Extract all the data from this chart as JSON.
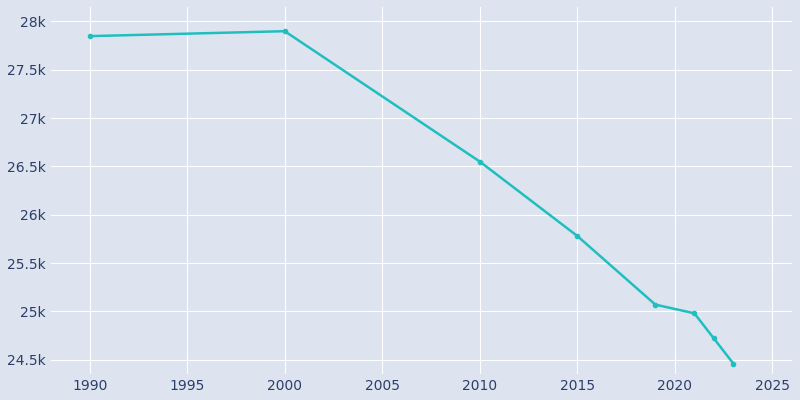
{
  "years": [
    1990,
    2000,
    2010,
    2015,
    2019,
    2021,
    2022,
    2023
  ],
  "population": [
    27848,
    27899,
    26550,
    25780,
    25070,
    24980,
    24720,
    24460
  ],
  "line_color": "#20BFBF",
  "marker": "o",
  "marker_size": 3,
  "bg_color": "#DDE4EF",
  "axes_bg_color": "#DDE4EF",
  "fig_bg_color": "#DDE4EF",
  "grid_color": "#FFFFFF",
  "tick_label_color": "#2C3E6B",
  "xlim": [
    1988.0,
    2026.0
  ],
  "ylim": [
    24350,
    28150
  ],
  "xticks": [
    1990,
    1995,
    2000,
    2005,
    2010,
    2015,
    2020,
    2025
  ],
  "ytick_labels": [
    "24.5k",
    "25k",
    "25.5k",
    "26k",
    "26.5k",
    "27k",
    "27.5k",
    "28k"
  ],
  "ytick_values": [
    24500,
    25000,
    25500,
    26000,
    26500,
    27000,
    27500,
    28000
  ],
  "spine_color": "#DDE4EF",
  "linewidth": 1.8
}
